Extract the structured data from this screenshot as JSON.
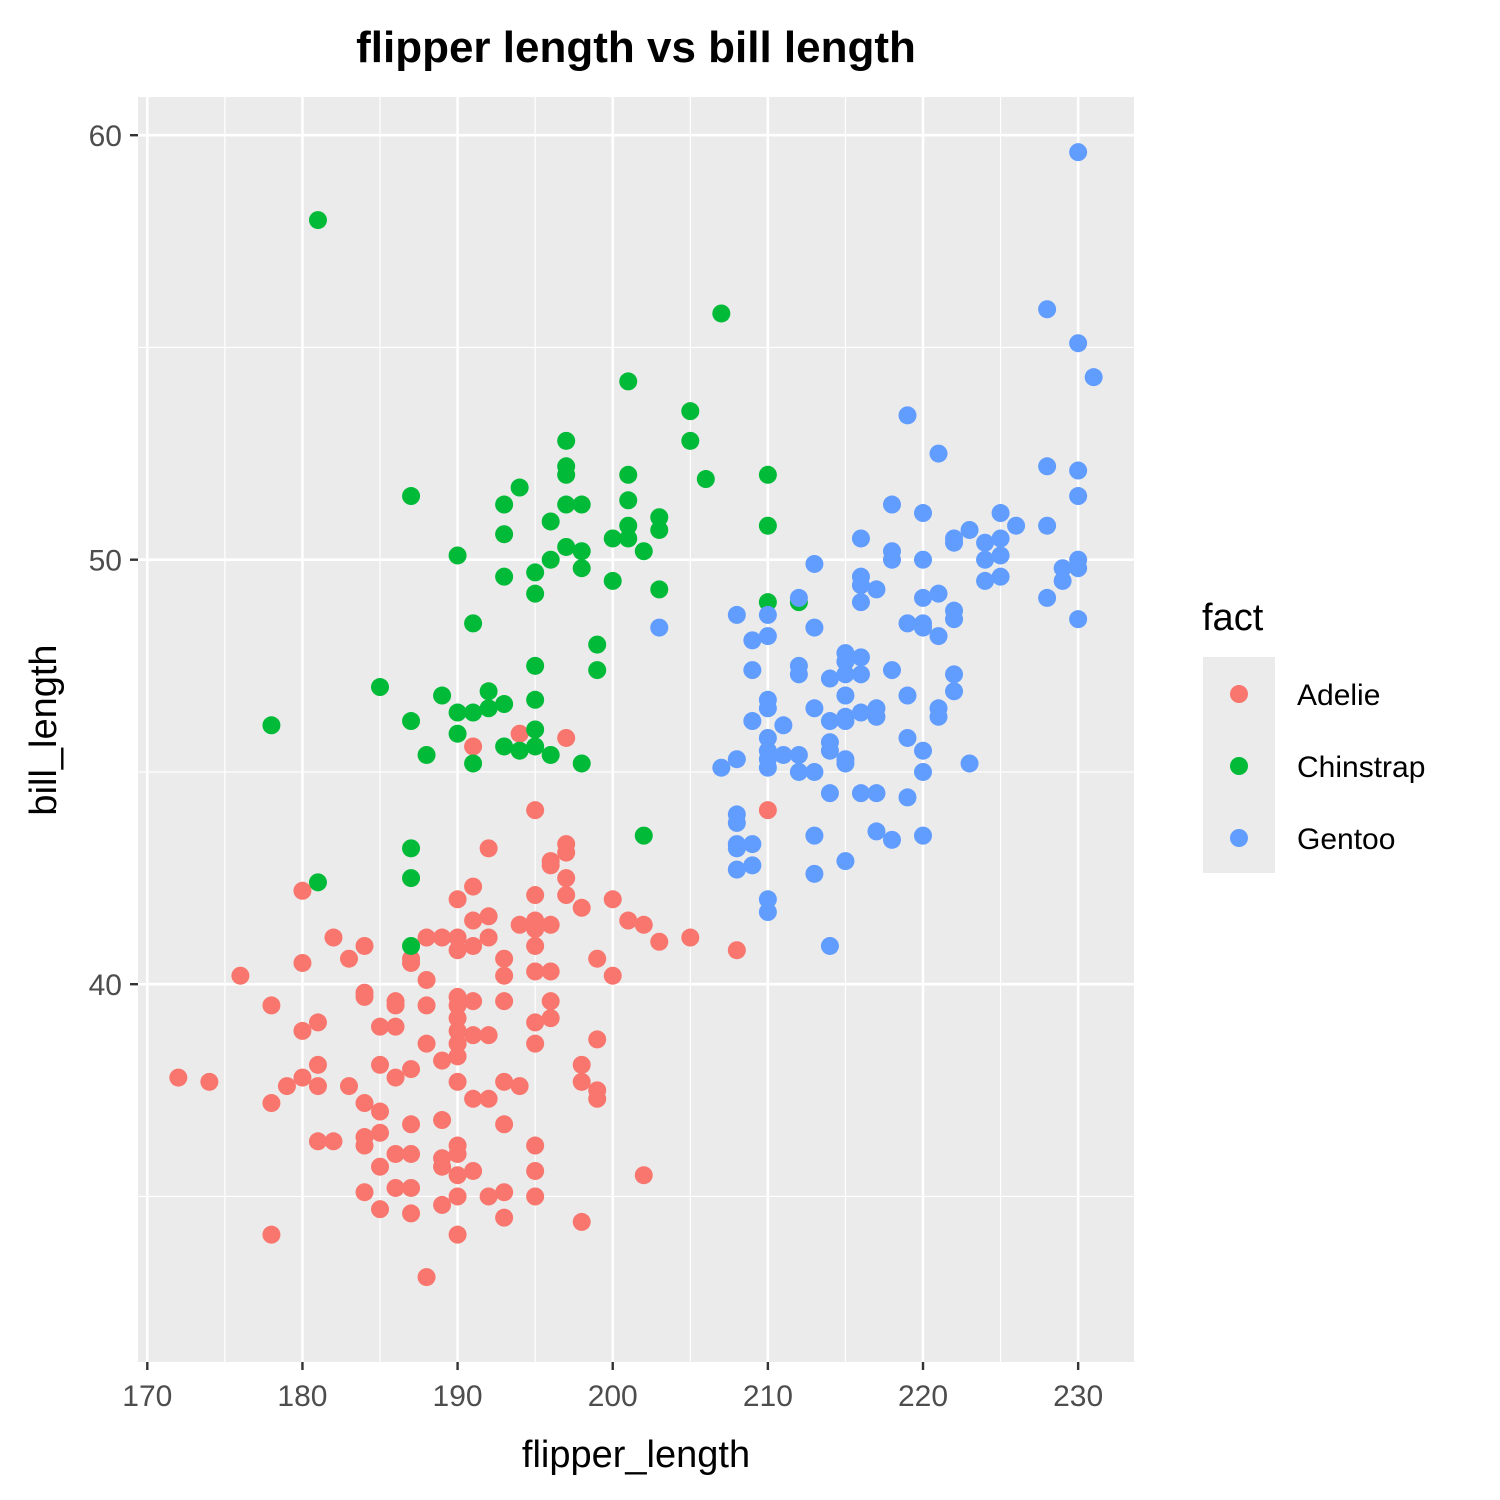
{
  "chart_data": {
    "type": "scatter",
    "title": "flipper length vs bill length",
    "xlabel": "flipper_length",
    "ylabel": "bill_length",
    "xlim": [
      169.4,
      233.6
    ],
    "ylim": [
      31.1,
      60.9
    ],
    "x_ticks": [
      170,
      180,
      190,
      200,
      210,
      220,
      230
    ],
    "y_ticks": [
      40,
      50,
      60
    ],
    "grid": true,
    "background_color": "#ebebeb",
    "legend": {
      "title": "fact",
      "position": "right"
    },
    "series": [
      {
        "name": "Adelie",
        "color": "#F8766D",
        "points": [
          [
            172,
            37.8
          ],
          [
            174,
            37.7
          ],
          [
            176,
            40.2
          ],
          [
            178,
            39.5
          ],
          [
            178,
            37.2
          ],
          [
            178,
            34.1
          ],
          [
            179,
            37.6
          ],
          [
            180,
            42.2
          ],
          [
            180,
            40.5
          ],
          [
            180,
            38.9
          ],
          [
            180,
            37.8
          ],
          [
            181,
            39.1
          ],
          [
            181,
            38.1
          ],
          [
            181,
            37.6
          ],
          [
            181,
            36.3
          ],
          [
            182,
            41.1
          ],
          [
            182,
            36.3
          ],
          [
            183,
            40.6
          ],
          [
            183,
            37.6
          ],
          [
            184,
            40.9
          ],
          [
            184,
            39.7
          ],
          [
            184,
            39.8
          ],
          [
            184,
            37.2
          ],
          [
            184,
            36.4
          ],
          [
            184,
            36.2
          ],
          [
            184,
            35.1
          ],
          [
            185,
            38.1
          ],
          [
            185,
            39.0
          ],
          [
            185,
            37.0
          ],
          [
            185,
            36.5
          ],
          [
            185,
            35.7
          ],
          [
            185,
            34.7
          ],
          [
            186,
            39.6
          ],
          [
            186,
            39.5
          ],
          [
            186,
            39.0
          ],
          [
            186,
            37.8
          ],
          [
            186,
            36.0
          ],
          [
            186,
            35.2
          ],
          [
            187,
            40.6
          ],
          [
            187,
            40.5
          ],
          [
            187,
            38.0
          ],
          [
            187,
            36.7
          ],
          [
            187,
            36.0
          ],
          [
            187,
            35.2
          ],
          [
            187,
            34.6
          ],
          [
            188,
            41.1
          ],
          [
            188,
            40.1
          ],
          [
            188,
            39.5
          ],
          [
            188,
            38.6
          ],
          [
            188,
            33.1
          ],
          [
            189,
            41.1
          ],
          [
            189,
            38.2
          ],
          [
            189,
            36.8
          ],
          [
            189,
            35.9
          ],
          [
            189,
            35.7
          ],
          [
            189,
            34.8
          ],
          [
            190,
            42.0
          ],
          [
            190,
            41.1
          ],
          [
            190,
            40.8
          ],
          [
            190,
            39.7
          ],
          [
            190,
            39.5
          ],
          [
            190,
            39.2
          ],
          [
            190,
            38.9
          ],
          [
            190,
            38.6
          ],
          [
            190,
            38.3
          ],
          [
            190,
            37.7
          ],
          [
            190,
            36.2
          ],
          [
            190,
            36.0
          ],
          [
            190,
            35.5
          ],
          [
            190,
            35.0
          ],
          [
            190,
            34.1
          ],
          [
            191,
            45.6
          ],
          [
            191,
            42.3
          ],
          [
            191,
            41.5
          ],
          [
            191,
            40.9
          ],
          [
            191,
            39.6
          ],
          [
            191,
            38.8
          ],
          [
            191,
            37.3
          ],
          [
            191,
            35.6
          ],
          [
            192,
            43.2
          ],
          [
            192,
            41.6
          ],
          [
            192,
            41.1
          ],
          [
            192,
            38.8
          ],
          [
            192,
            37.3
          ],
          [
            192,
            35.0
          ],
          [
            193,
            40.6
          ],
          [
            193,
            40.2
          ],
          [
            193,
            39.6
          ],
          [
            193,
            37.7
          ],
          [
            193,
            36.7
          ],
          [
            193,
            35.1
          ],
          [
            193,
            34.5
          ],
          [
            194,
            45.9
          ],
          [
            194,
            41.4
          ],
          [
            194,
            37.6
          ],
          [
            195,
            44.1
          ],
          [
            195,
            42.1
          ],
          [
            195,
            41.3
          ],
          [
            195,
            41.5
          ],
          [
            195,
            40.9
          ],
          [
            195,
            40.3
          ],
          [
            195,
            39.1
          ],
          [
            195,
            38.6
          ],
          [
            195,
            36.2
          ],
          [
            195,
            35.6
          ],
          [
            195,
            35.0
          ],
          [
            196,
            42.9
          ],
          [
            196,
            42.8
          ],
          [
            196,
            41.4
          ],
          [
            196,
            40.3
          ],
          [
            196,
            39.6
          ],
          [
            196,
            39.2
          ],
          [
            197,
            45.8
          ],
          [
            197,
            43.3
          ],
          [
            197,
            43.1
          ],
          [
            197,
            42.5
          ],
          [
            197,
            42.1
          ],
          [
            198,
            41.8
          ],
          [
            198,
            38.1
          ],
          [
            198,
            37.7
          ],
          [
            198,
            34.4
          ],
          [
            199,
            40.6
          ],
          [
            199,
            38.7
          ],
          [
            199,
            37.3
          ],
          [
            199,
            37.5
          ],
          [
            200,
            42.0
          ],
          [
            200,
            40.2
          ],
          [
            201,
            41.5
          ],
          [
            202,
            41.4
          ],
          [
            202,
            35.5
          ],
          [
            203,
            41.0
          ],
          [
            205,
            41.1
          ],
          [
            208,
            40.8
          ],
          [
            210,
            44.1
          ]
        ]
      },
      {
        "name": "Chinstrap",
        "color": "#00BA38",
        "points": [
          [
            178,
            46.1
          ],
          [
            181,
            58.0
          ],
          [
            181,
            42.4
          ],
          [
            185,
            47.0
          ],
          [
            187,
            51.5
          ],
          [
            187,
            46.2
          ],
          [
            187,
            43.2
          ],
          [
            187,
            42.5
          ],
          [
            187,
            40.9
          ],
          [
            188,
            45.4
          ],
          [
            189,
            46.8
          ],
          [
            190,
            50.1
          ],
          [
            190,
            46.4
          ],
          [
            190,
            45.9
          ],
          [
            191,
            48.5
          ],
          [
            191,
            46.4
          ],
          [
            191,
            45.2
          ],
          [
            192,
            46.9
          ],
          [
            192,
            46.5
          ],
          [
            193,
            51.3
          ],
          [
            193,
            50.6
          ],
          [
            193,
            49.6
          ],
          [
            193,
            46.6
          ],
          [
            193,
            45.6
          ],
          [
            194,
            51.7
          ],
          [
            194,
            45.5
          ],
          [
            195,
            49.7
          ],
          [
            195,
            49.2
          ],
          [
            195,
            47.5
          ],
          [
            195,
            46.7
          ],
          [
            195,
            46.0
          ],
          [
            195,
            45.6
          ],
          [
            196,
            50.9
          ],
          [
            196,
            50.0
          ],
          [
            196,
            45.4
          ],
          [
            197,
            52.8
          ],
          [
            197,
            52.2
          ],
          [
            197,
            52.0
          ],
          [
            197,
            51.3
          ],
          [
            197,
            50.3
          ],
          [
            198,
            51.3
          ],
          [
            198,
            50.2
          ],
          [
            198,
            49.8
          ],
          [
            198,
            45.2
          ],
          [
            199,
            48.0
          ],
          [
            199,
            47.4
          ],
          [
            200,
            50.5
          ],
          [
            200,
            49.5
          ],
          [
            201,
            54.2
          ],
          [
            201,
            52.0
          ],
          [
            201,
            51.4
          ],
          [
            201,
            50.8
          ],
          [
            201,
            50.5
          ],
          [
            202,
            50.2
          ],
          [
            202,
            43.5
          ],
          [
            203,
            51.0
          ],
          [
            203,
            50.7
          ],
          [
            203,
            49.3
          ],
          [
            205,
            53.5
          ],
          [
            205,
            52.8
          ],
          [
            206,
            51.9
          ],
          [
            207,
            55.8
          ],
          [
            210,
            52.0
          ],
          [
            210,
            50.8
          ],
          [
            210,
            49.0
          ],
          [
            212,
            49.0
          ]
        ]
      },
      {
        "name": "Gentoo",
        "color": "#619CFF",
        "points": [
          [
            203,
            48.4
          ],
          [
            207,
            45.1
          ],
          [
            208,
            48.7
          ],
          [
            208,
            45.3
          ],
          [
            208,
            44.0
          ],
          [
            208,
            43.8
          ],
          [
            208,
            43.3
          ],
          [
            208,
            43.2
          ],
          [
            208,
            42.7
          ],
          [
            209,
            48.1
          ],
          [
            209,
            47.4
          ],
          [
            209,
            46.2
          ],
          [
            209,
            43.3
          ],
          [
            209,
            42.8
          ],
          [
            210,
            48.7
          ],
          [
            210,
            48.2
          ],
          [
            210,
            46.7
          ],
          [
            210,
            46.5
          ],
          [
            210,
            45.8
          ],
          [
            210,
            45.5
          ],
          [
            210,
            45.3
          ],
          [
            210,
            45.1
          ],
          [
            210,
            42.0
          ],
          [
            210,
            41.7
          ],
          [
            211,
            46.1
          ],
          [
            211,
            45.4
          ],
          [
            212,
            49.1
          ],
          [
            212,
            47.5
          ],
          [
            212,
            47.3
          ],
          [
            212,
            45.4
          ],
          [
            212,
            45.0
          ],
          [
            213,
            49.9
          ],
          [
            213,
            48.4
          ],
          [
            213,
            46.5
          ],
          [
            213,
            45.0
          ],
          [
            213,
            43.5
          ],
          [
            213,
            42.6
          ],
          [
            214,
            47.2
          ],
          [
            214,
            46.2
          ],
          [
            214,
            45.7
          ],
          [
            214,
            45.5
          ],
          [
            214,
            44.5
          ],
          [
            214,
            40.9
          ],
          [
            215,
            47.8
          ],
          [
            215,
            47.6
          ],
          [
            215,
            47.3
          ],
          [
            215,
            46.8
          ],
          [
            215,
            46.3
          ],
          [
            215,
            46.2
          ],
          [
            215,
            45.3
          ],
          [
            215,
            45.2
          ],
          [
            215,
            42.9
          ],
          [
            216,
            50.5
          ],
          [
            216,
            49.6
          ],
          [
            216,
            49.4
          ],
          [
            216,
            49.0
          ],
          [
            216,
            47.7
          ],
          [
            216,
            47.3
          ],
          [
            216,
            46.4
          ],
          [
            216,
            44.5
          ],
          [
            217,
            49.3
          ],
          [
            217,
            46.5
          ],
          [
            217,
            46.3
          ],
          [
            217,
            44.5
          ],
          [
            217,
            43.6
          ],
          [
            218,
            51.3
          ],
          [
            218,
            50.2
          ],
          [
            218,
            50.0
          ],
          [
            218,
            47.4
          ],
          [
            218,
            43.4
          ],
          [
            219,
            53.4
          ],
          [
            219,
            48.5
          ],
          [
            219,
            46.8
          ],
          [
            219,
            45.8
          ],
          [
            219,
            44.4
          ],
          [
            220,
            51.1
          ],
          [
            220,
            50.0
          ],
          [
            220,
            49.1
          ],
          [
            220,
            48.5
          ],
          [
            220,
            48.4
          ],
          [
            220,
            45.5
          ],
          [
            220,
            45.0
          ],
          [
            220,
            43.5
          ],
          [
            221,
            52.5
          ],
          [
            221,
            49.2
          ],
          [
            221,
            48.2
          ],
          [
            221,
            46.5
          ],
          [
            221,
            46.3
          ],
          [
            222,
            50.5
          ],
          [
            222,
            50.4
          ],
          [
            222,
            48.8
          ],
          [
            222,
            48.6
          ],
          [
            222,
            47.3
          ],
          [
            222,
            46.9
          ],
          [
            223,
            50.7
          ],
          [
            223,
            45.2
          ],
          [
            224,
            50.4
          ],
          [
            224,
            50.0
          ],
          [
            224,
            49.5
          ],
          [
            225,
            51.1
          ],
          [
            225,
            50.5
          ],
          [
            225,
            50.1
          ],
          [
            225,
            49.6
          ],
          [
            226,
            50.8
          ],
          [
            228,
            55.9
          ],
          [
            228,
            52.2
          ],
          [
            228,
            50.8
          ],
          [
            228,
            49.1
          ],
          [
            229,
            49.8
          ],
          [
            229,
            49.5
          ],
          [
            230,
            59.6
          ],
          [
            230,
            55.1
          ],
          [
            230,
            52.1
          ],
          [
            230,
            51.5
          ],
          [
            230,
            50.0
          ],
          [
            230,
            49.8
          ],
          [
            230,
            48.6
          ],
          [
            231,
            54.3
          ]
        ]
      }
    ]
  }
}
